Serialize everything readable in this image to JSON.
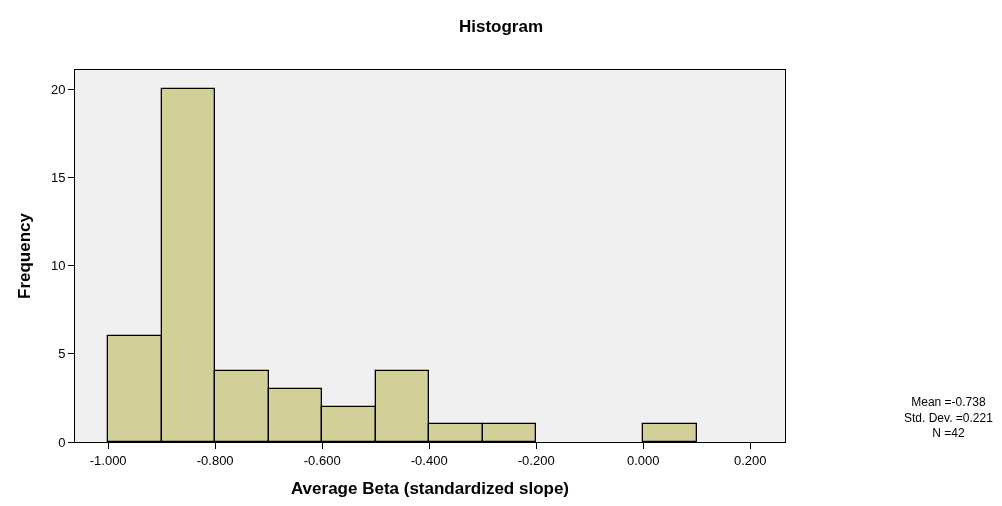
{
  "chart_data": {
    "type": "histogram",
    "title": "Histogram",
    "xlabel": "Average Beta (standardized slope)",
    "ylabel": "Frequency",
    "bins": [
      -1.0,
      -0.9,
      -0.8,
      -0.7,
      -0.6,
      -0.5,
      -0.4,
      -0.3,
      -0.2,
      -0.1,
      0.0,
      0.1
    ],
    "values": [
      6,
      20,
      4,
      3,
      2,
      4,
      1,
      1,
      0,
      0,
      1
    ],
    "color": "#d3cf98",
    "xlim": [
      -1.062,
      0.265
    ],
    "xticks": [
      {
        "value": -1.0,
        "label": "-1.000"
      },
      {
        "value": -0.8,
        "label": "-0.800"
      },
      {
        "value": -0.6,
        "label": "-0.600"
      },
      {
        "value": -0.4,
        "label": "-0.400"
      },
      {
        "value": -0.2,
        "label": "-0.200"
      },
      {
        "value": 0.0,
        "label": "0.000"
      },
      {
        "value": 0.2,
        "label": "0.200"
      }
    ],
    "ylim": [
      0,
      21.1
    ],
    "yticks": [
      0,
      5,
      10,
      15,
      20
    ],
    "grid": false,
    "annotations": [
      "Mean =-0.738",
      "Std. Dev. =0.221",
      "N =42"
    ]
  }
}
